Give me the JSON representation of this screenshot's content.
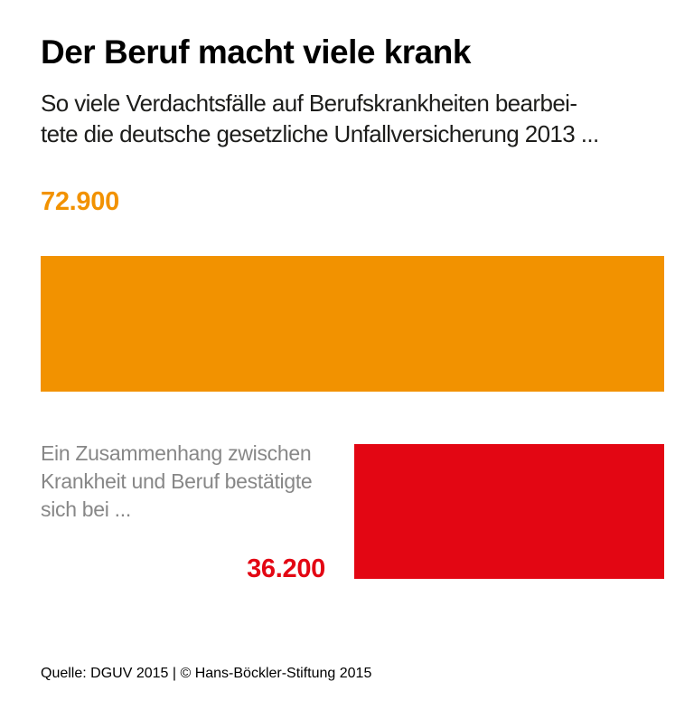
{
  "page": {
    "title": "Der Beruf macht viele krank",
    "subtitle_lines": [
      "So viele Verdachtsfälle auf Berufskrankheiten bearbei-",
      "tete die deutsche gesetzliche Unfallversicherung 2013 ..."
    ],
    "footer": "Quelle: DGUV 2015 | © Hans-Böckler-Stiftung 2015"
  },
  "chart_data": {
    "type": "bar",
    "orientation": "horizontal",
    "title": "Der Beruf macht viele krank",
    "subtitle": "So viele Verdachtsfälle auf Berufskrankheiten bearbeitete die deutsche gesetzliche Unfallversicherung 2013 ...",
    "categories": [
      "Von der deutschen gesetzlichen Unfallversicherung 2013 bearbeitete Verdachtsfälle auf Berufskrankheiten",
      "Fälle mit bestätigtem Zusammenhang zwischen Krankheit und Beruf"
    ],
    "values": [
      72900,
      36200
    ],
    "value_labels": [
      "72.900",
      "36.200"
    ],
    "colors": [
      "#F29200",
      "#E30613"
    ],
    "xlim": [
      0,
      72900
    ],
    "grid": false,
    "legend": "none",
    "annotation_lines": [
      "Ein Zusammenhang zwischen",
      "Krankheit und Beruf bestätigte",
      "sich bei ..."
    ],
    "annotation_color": "#878787",
    "source": "Quelle: DGUV 2015 | © Hans-Böckler-Stiftung 2015"
  }
}
